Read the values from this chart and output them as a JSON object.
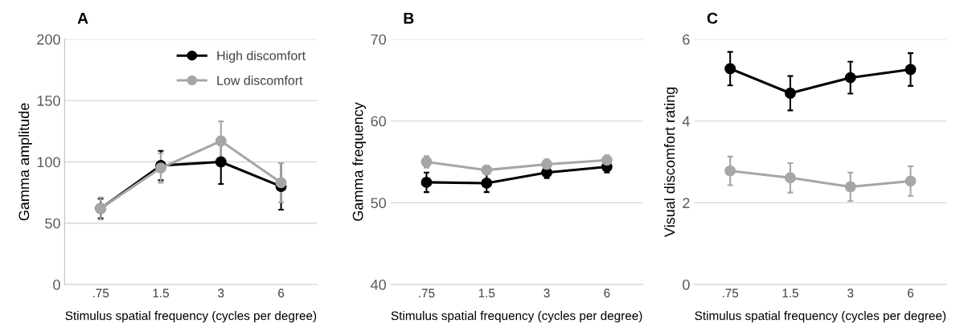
{
  "chart_data": [
    {
      "type": "line",
      "title": "A",
      "xlabel": "Stimulus spatial frequency (cycles per degree)",
      "ylabel": "Gamma amplitude",
      "categories": [
        ".75",
        "1.5",
        "3",
        "6"
      ],
      "ylim": [
        0,
        200
      ],
      "yticks": [
        0,
        50,
        100,
        150,
        200
      ],
      "grid": "y",
      "legend": "top right",
      "marker": "circle",
      "line_style": "solid",
      "series": [
        {
          "name": "High discomfort",
          "color": "#000000",
          "values": [
            62,
            97,
            100,
            80
          ],
          "errors": [
            8,
            12,
            18,
            19
          ]
        },
        {
          "name": "Low discomfort",
          "color": "#a6a6a6",
          "values": [
            62,
            95,
            117,
            83
          ],
          "errors": [
            9,
            12,
            16,
            16
          ]
        }
      ]
    },
    {
      "type": "line",
      "title": "B",
      "xlabel": "Stimulus spatial frequency (cycles per degree)",
      "ylabel": "Gamma frequency",
      "categories": [
        ".75",
        "1.5",
        "3",
        "6"
      ],
      "ylim": [
        40,
        70
      ],
      "yticks": [
        40,
        50,
        60,
        70
      ],
      "grid": "y",
      "marker": "circle",
      "line_style": "solid",
      "series": [
        {
          "color": "#000000",
          "values": [
            52.5,
            52.4,
            53.7,
            54.4
          ],
          "errors": [
            1.2,
            1.1,
            0.7,
            0.7
          ]
        },
        {
          "color": "#a6a6a6",
          "values": [
            55.0,
            54.0,
            54.7,
            55.2
          ],
          "errors": [
            0.7,
            0.5,
            0.6,
            0.6
          ]
        }
      ]
    },
    {
      "type": "line",
      "title": "C",
      "xlabel": "Stimulus spatial frequency (cycles per degree)",
      "ylabel": "Visual discomfort rating",
      "categories": [
        ".75",
        "1.5",
        "3",
        "6"
      ],
      "ylim": [
        0,
        6
      ],
      "yticks": [
        0,
        2,
        4,
        6
      ],
      "grid": "y",
      "marker": "circle",
      "line_style": "solid",
      "series": [
        {
          "color": "#000000",
          "values": [
            5.28,
            4.68,
            5.06,
            5.26
          ],
          "errors": [
            0.41,
            0.42,
            0.39,
            0.4
          ]
        },
        {
          "color": "#a6a6a6",
          "values": [
            2.78,
            2.61,
            2.39,
            2.53
          ],
          "errors": [
            0.35,
            0.36,
            0.35,
            0.36
          ]
        }
      ]
    }
  ]
}
